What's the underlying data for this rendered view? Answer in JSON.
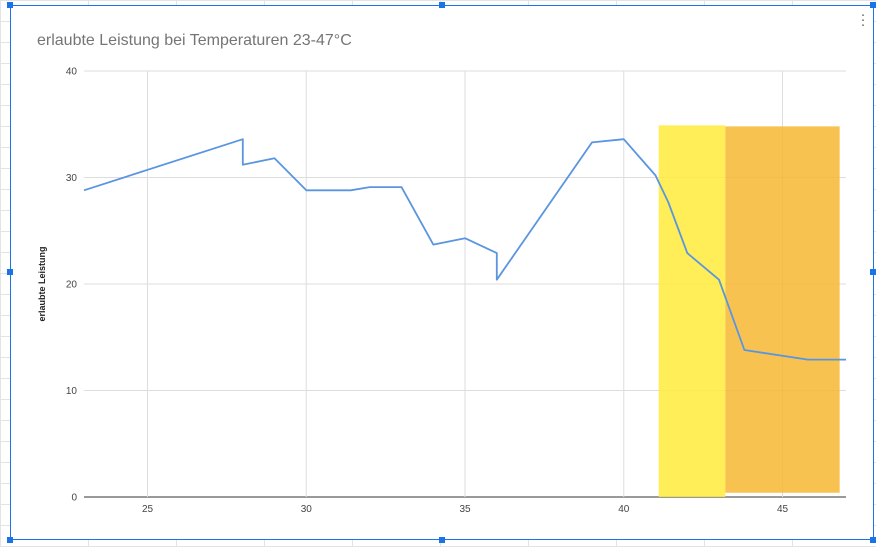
{
  "chart_data": {
    "type": "line",
    "title": "erlaubte Leistung bei Temperaturen 23-47°C",
    "xlabel": "",
    "ylabel": "erlaubte Leistung",
    "xlim": [
      23,
      47
    ],
    "ylim": [
      0,
      40
    ],
    "x_ticks": [
      25,
      30,
      35,
      40,
      45
    ],
    "y_ticks": [
      0,
      10,
      20,
      30,
      40
    ],
    "grid": true,
    "legend": "none",
    "series": [
      {
        "color": "#5a95e0",
        "points": [
          [
            23,
            28.8
          ],
          [
            28,
            33.6
          ],
          [
            28,
            31.2
          ],
          [
            29,
            31.8
          ],
          [
            30,
            28.8
          ],
          [
            31.4,
            28.8
          ],
          [
            32,
            29.1
          ],
          [
            33,
            29.1
          ],
          [
            34,
            23.7
          ],
          [
            35,
            24.3
          ],
          [
            36,
            22.9
          ],
          [
            36,
            20.4
          ],
          [
            39,
            33.3
          ],
          [
            40,
            33.6
          ],
          [
            41,
            30.2
          ],
          [
            41.4,
            27.7
          ],
          [
            42,
            22.9
          ],
          [
            43,
            20.4
          ],
          [
            43.8,
            13.8
          ],
          [
            45.8,
            12.9
          ],
          [
            47,
            12.9
          ]
        ]
      }
    ],
    "highlight_bands": [
      {
        "x": [
          41.1,
          43.2
        ],
        "y": [
          0,
          34.9
        ],
        "color": "#ffeb3b"
      },
      {
        "x": [
          43.2,
          46.8
        ],
        "y": [
          0.4,
          34.8
        ],
        "color": "#f7b733"
      }
    ]
  }
}
